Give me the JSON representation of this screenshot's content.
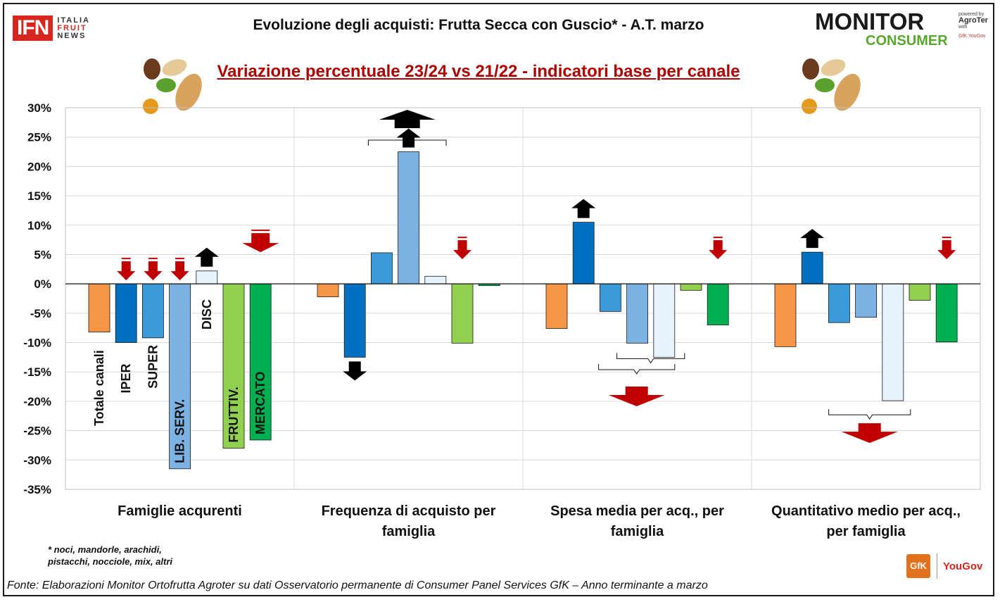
{
  "header": {
    "logo_left": {
      "main": "IFN",
      "line1": "ITALIA",
      "line2": "FRUIT",
      "line3": "NEWS"
    },
    "title": "Evoluzione degli acquisti: Frutta Secca con Guscio*   - A.T. marzo",
    "logo_right": {
      "line1": "MONITOR",
      "line2": "CONSUMER",
      "powered": "powered by",
      "brand": "AgroTer",
      "with": "with",
      "partners": "GfK YouGov"
    }
  },
  "footer": {
    "note_line1": "* noci, mandorle, arachidi,",
    "note_line2": "pistacchi,  nocciole,  mix,  altri",
    "source": "Fonte: Elaborazioni Monitor Ortofrutta Agroter su dati Osservatorio permanente di Consumer Panel Services GfK  – Anno terminante a marzo",
    "gfk": "GfK",
    "yougov": "YouGov"
  },
  "chart_data": {
    "type": "bar",
    "title": "Variazione percentuale 23/24 vs 21/22 - indicatori base per canale",
    "ylim": [
      -35,
      30
    ],
    "ytick_step": 5,
    "yticks": [
      "30%",
      "25%",
      "20%",
      "15%",
      "10%",
      "5%",
      "0%",
      "-5%",
      "-10%",
      "-15%",
      "-20%",
      "-25%",
      "-30%",
      "-35%"
    ],
    "grid": true,
    "channels": [
      "Totale canali",
      "IPER",
      "SUPER",
      "LIB. SERV.",
      "DISC",
      "FRUTTIV.",
      "MERCATO"
    ],
    "channel_colors": [
      "#f79646",
      "#0070c0",
      "#3b9bd9",
      "#7cb1e3",
      "#e6f3fc",
      "#92d050",
      "#00b050"
    ],
    "groups": [
      {
        "label_line1": "Famiglie acqurenti",
        "label_line2": "",
        "values": [
          -8.2,
          -10.0,
          -9.2,
          -31.5,
          2.2,
          -28.0,
          -26.6
        ]
      },
      {
        "label_line1": "Frequenza di acquisto per",
        "label_line2": "famiglia",
        "values": [
          -2.2,
          -12.5,
          5.3,
          22.5,
          1.3,
          -10.1,
          -0.3
        ]
      },
      {
        "label_line1": "Spesa media per acq., per",
        "label_line2": "famiglia",
        "values": [
          -7.6,
          10.5,
          -4.7,
          -10.1,
          -12.5,
          -1.1,
          -7.0
        ]
      },
      {
        "label_line1": "Quantitativo medio per acq.,",
        "label_line2": "per famiglia",
        "values": [
          -10.7,
          5.4,
          -6.6,
          -5.7,
          -19.9,
          -2.8,
          -9.9
        ]
      }
    ],
    "arrows": [
      {
        "group": 0,
        "bar": 1,
        "direction": "down",
        "color": "#c00000"
      },
      {
        "group": 0,
        "bar": 2,
        "direction": "down",
        "color": "#c00000"
      },
      {
        "group": 0,
        "bar": 3,
        "direction": "down",
        "color": "#c00000"
      },
      {
        "group": 0,
        "bar": 4,
        "direction": "up",
        "color": "#000000"
      },
      {
        "group": 0,
        "bar": 6,
        "direction": "down",
        "color": "#c00000"
      },
      {
        "group": 1,
        "bar": 1,
        "direction": "down",
        "color": "#000000"
      },
      {
        "group": 1,
        "bar": 3,
        "direction": "up",
        "color": "#000000"
      },
      {
        "group": 1,
        "bar": 5,
        "direction": "down",
        "color": "#c00000"
      },
      {
        "group": 2,
        "bar": 1,
        "direction": "up",
        "color": "#000000"
      },
      {
        "group": 2,
        "bar": 3,
        "direction": "down",
        "color": "#c00000"
      },
      {
        "group": 2,
        "bar": 6,
        "direction": "down",
        "color": "#c00000"
      },
      {
        "group": 3,
        "bar": 1,
        "direction": "up",
        "color": "#000000"
      },
      {
        "group": 3,
        "bar": 4,
        "direction": "down",
        "color": "#c00000"
      },
      {
        "group": 3,
        "bar": 6,
        "direction": "down",
        "color": "#c00000"
      }
    ]
  }
}
